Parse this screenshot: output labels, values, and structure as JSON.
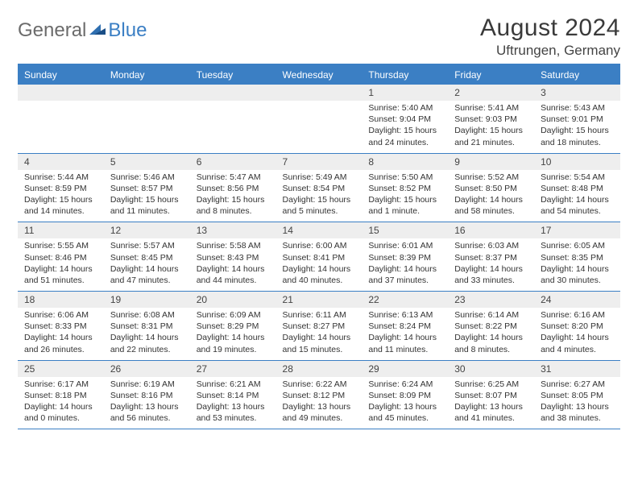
{
  "brand": {
    "general": "General",
    "blue": "Blue"
  },
  "title": "August 2024",
  "location": "Uftrungen, Germany",
  "colors": {
    "accent": "#3b7fc4",
    "header_text": "#ffffff",
    "daynum_bg": "#eeeeee",
    "text": "#333333",
    "logo_gray": "#6b6b6b"
  },
  "day_names": [
    "Sunday",
    "Monday",
    "Tuesday",
    "Wednesday",
    "Thursday",
    "Friday",
    "Saturday"
  ],
  "weeks": [
    {
      "nums": [
        "",
        "",
        "",
        "",
        "1",
        "2",
        "3"
      ],
      "cells": [
        null,
        null,
        null,
        null,
        {
          "sunrise": "Sunrise: 5:40 AM",
          "sunset": "Sunset: 9:04 PM",
          "daylight1": "Daylight: 15 hours",
          "daylight2": "and 24 minutes."
        },
        {
          "sunrise": "Sunrise: 5:41 AM",
          "sunset": "Sunset: 9:03 PM",
          "daylight1": "Daylight: 15 hours",
          "daylight2": "and 21 minutes."
        },
        {
          "sunrise": "Sunrise: 5:43 AM",
          "sunset": "Sunset: 9:01 PM",
          "daylight1": "Daylight: 15 hours",
          "daylight2": "and 18 minutes."
        }
      ]
    },
    {
      "nums": [
        "4",
        "5",
        "6",
        "7",
        "8",
        "9",
        "10"
      ],
      "cells": [
        {
          "sunrise": "Sunrise: 5:44 AM",
          "sunset": "Sunset: 8:59 PM",
          "daylight1": "Daylight: 15 hours",
          "daylight2": "and 14 minutes."
        },
        {
          "sunrise": "Sunrise: 5:46 AM",
          "sunset": "Sunset: 8:57 PM",
          "daylight1": "Daylight: 15 hours",
          "daylight2": "and 11 minutes."
        },
        {
          "sunrise": "Sunrise: 5:47 AM",
          "sunset": "Sunset: 8:56 PM",
          "daylight1": "Daylight: 15 hours",
          "daylight2": "and 8 minutes."
        },
        {
          "sunrise": "Sunrise: 5:49 AM",
          "sunset": "Sunset: 8:54 PM",
          "daylight1": "Daylight: 15 hours",
          "daylight2": "and 5 minutes."
        },
        {
          "sunrise": "Sunrise: 5:50 AM",
          "sunset": "Sunset: 8:52 PM",
          "daylight1": "Daylight: 15 hours",
          "daylight2": "and 1 minute."
        },
        {
          "sunrise": "Sunrise: 5:52 AM",
          "sunset": "Sunset: 8:50 PM",
          "daylight1": "Daylight: 14 hours",
          "daylight2": "and 58 minutes."
        },
        {
          "sunrise": "Sunrise: 5:54 AM",
          "sunset": "Sunset: 8:48 PM",
          "daylight1": "Daylight: 14 hours",
          "daylight2": "and 54 minutes."
        }
      ]
    },
    {
      "nums": [
        "11",
        "12",
        "13",
        "14",
        "15",
        "16",
        "17"
      ],
      "cells": [
        {
          "sunrise": "Sunrise: 5:55 AM",
          "sunset": "Sunset: 8:46 PM",
          "daylight1": "Daylight: 14 hours",
          "daylight2": "and 51 minutes."
        },
        {
          "sunrise": "Sunrise: 5:57 AM",
          "sunset": "Sunset: 8:45 PM",
          "daylight1": "Daylight: 14 hours",
          "daylight2": "and 47 minutes."
        },
        {
          "sunrise": "Sunrise: 5:58 AM",
          "sunset": "Sunset: 8:43 PM",
          "daylight1": "Daylight: 14 hours",
          "daylight2": "and 44 minutes."
        },
        {
          "sunrise": "Sunrise: 6:00 AM",
          "sunset": "Sunset: 8:41 PM",
          "daylight1": "Daylight: 14 hours",
          "daylight2": "and 40 minutes."
        },
        {
          "sunrise": "Sunrise: 6:01 AM",
          "sunset": "Sunset: 8:39 PM",
          "daylight1": "Daylight: 14 hours",
          "daylight2": "and 37 minutes."
        },
        {
          "sunrise": "Sunrise: 6:03 AM",
          "sunset": "Sunset: 8:37 PM",
          "daylight1": "Daylight: 14 hours",
          "daylight2": "and 33 minutes."
        },
        {
          "sunrise": "Sunrise: 6:05 AM",
          "sunset": "Sunset: 8:35 PM",
          "daylight1": "Daylight: 14 hours",
          "daylight2": "and 30 minutes."
        }
      ]
    },
    {
      "nums": [
        "18",
        "19",
        "20",
        "21",
        "22",
        "23",
        "24"
      ],
      "cells": [
        {
          "sunrise": "Sunrise: 6:06 AM",
          "sunset": "Sunset: 8:33 PM",
          "daylight1": "Daylight: 14 hours",
          "daylight2": "and 26 minutes."
        },
        {
          "sunrise": "Sunrise: 6:08 AM",
          "sunset": "Sunset: 8:31 PM",
          "daylight1": "Daylight: 14 hours",
          "daylight2": "and 22 minutes."
        },
        {
          "sunrise": "Sunrise: 6:09 AM",
          "sunset": "Sunset: 8:29 PM",
          "daylight1": "Daylight: 14 hours",
          "daylight2": "and 19 minutes."
        },
        {
          "sunrise": "Sunrise: 6:11 AM",
          "sunset": "Sunset: 8:27 PM",
          "daylight1": "Daylight: 14 hours",
          "daylight2": "and 15 minutes."
        },
        {
          "sunrise": "Sunrise: 6:13 AM",
          "sunset": "Sunset: 8:24 PM",
          "daylight1": "Daylight: 14 hours",
          "daylight2": "and 11 minutes."
        },
        {
          "sunrise": "Sunrise: 6:14 AM",
          "sunset": "Sunset: 8:22 PM",
          "daylight1": "Daylight: 14 hours",
          "daylight2": "and 8 minutes."
        },
        {
          "sunrise": "Sunrise: 6:16 AM",
          "sunset": "Sunset: 8:20 PM",
          "daylight1": "Daylight: 14 hours",
          "daylight2": "and 4 minutes."
        }
      ]
    },
    {
      "nums": [
        "25",
        "26",
        "27",
        "28",
        "29",
        "30",
        "31"
      ],
      "cells": [
        {
          "sunrise": "Sunrise: 6:17 AM",
          "sunset": "Sunset: 8:18 PM",
          "daylight1": "Daylight: 14 hours",
          "daylight2": "and 0 minutes."
        },
        {
          "sunrise": "Sunrise: 6:19 AM",
          "sunset": "Sunset: 8:16 PM",
          "daylight1": "Daylight: 13 hours",
          "daylight2": "and 56 minutes."
        },
        {
          "sunrise": "Sunrise: 6:21 AM",
          "sunset": "Sunset: 8:14 PM",
          "daylight1": "Daylight: 13 hours",
          "daylight2": "and 53 minutes."
        },
        {
          "sunrise": "Sunrise: 6:22 AM",
          "sunset": "Sunset: 8:12 PM",
          "daylight1": "Daylight: 13 hours",
          "daylight2": "and 49 minutes."
        },
        {
          "sunrise": "Sunrise: 6:24 AM",
          "sunset": "Sunset: 8:09 PM",
          "daylight1": "Daylight: 13 hours",
          "daylight2": "and 45 minutes."
        },
        {
          "sunrise": "Sunrise: 6:25 AM",
          "sunset": "Sunset: 8:07 PM",
          "daylight1": "Daylight: 13 hours",
          "daylight2": "and 41 minutes."
        },
        {
          "sunrise": "Sunrise: 6:27 AM",
          "sunset": "Sunset: 8:05 PM",
          "daylight1": "Daylight: 13 hours",
          "daylight2": "and 38 minutes."
        }
      ]
    }
  ]
}
